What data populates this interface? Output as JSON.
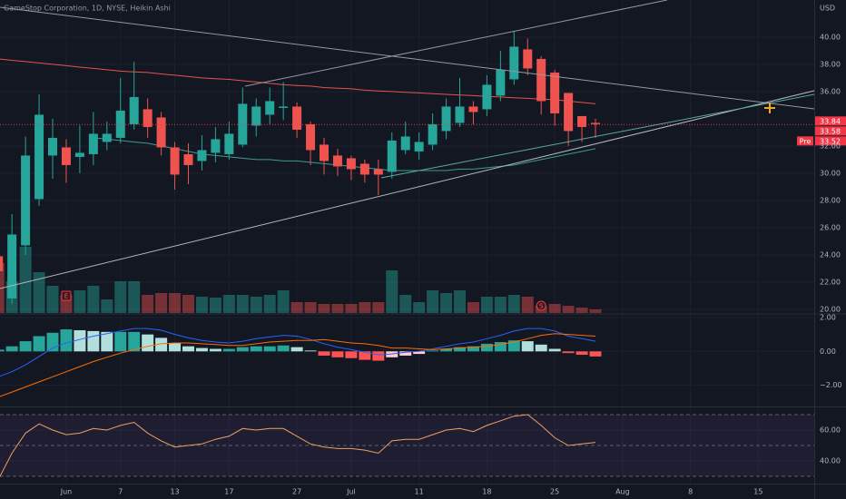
{
  "chart_data": [
    {
      "type": "candlestick",
      "title": "GameStop Corporation, 1D, NYSE, Heikin Ashi",
      "currency": "USD",
      "x": [
        0,
        1,
        2,
        3,
        4,
        5,
        6,
        7,
        8,
        9,
        10,
        11,
        12,
        13,
        14,
        15,
        16,
        17,
        18,
        19,
        20,
        21,
        22,
        23,
        24,
        25,
        26,
        27,
        28,
        29,
        30,
        31,
        32,
        33,
        34,
        35,
        36,
        37,
        38,
        39,
        40,
        41,
        42,
        43,
        44
      ],
      "open": [
        23.9,
        20.8,
        24.7,
        28.1,
        31.3,
        31.9,
        31.2,
        31.4,
        32.3,
        32.6,
        33.6,
        34.7,
        34.1,
        31.9,
        31.4,
        30.9,
        31.5,
        31.4,
        32.1,
        33.5,
        34.3,
        34.8,
        34.9,
        33.6,
        32.1,
        31.3,
        31.1,
        30.7,
        30.3,
        30.1,
        31.7,
        31.6,
        32.1,
        33.1,
        33.7,
        34.9,
        34.7,
        35.7,
        36.9,
        39.1,
        38.4,
        37.4,
        35.9,
        34.2,
        33.7
      ],
      "high": [
        24.2,
        27.0,
        32.7,
        35.8,
        34.0,
        32.5,
        33.5,
        34.5,
        33.8,
        37.0,
        38.2,
        35.5,
        34.5,
        32.3,
        32.2,
        32.8,
        33.4,
        33.8,
        36.3,
        35.5,
        36.3,
        36.7,
        35.2,
        33.8,
        32.6,
        31.8,
        31.3,
        31.0,
        31.0,
        33.0,
        33.8,
        33.0,
        34.4,
        35.5,
        37.0,
        35.3,
        37.2,
        39.0,
        40.4,
        39.9,
        38.6,
        37.6,
        35.9,
        34.2,
        34.0
      ],
      "low": [
        22.5,
        20.4,
        24.0,
        27.6,
        29.6,
        29.3,
        30.0,
        30.6,
        31.7,
        32.2,
        33.2,
        32.6,
        31.3,
        28.8,
        29.2,
        30.2,
        30.8,
        31.0,
        31.9,
        32.7,
        33.6,
        33.9,
        32.6,
        30.6,
        29.9,
        29.8,
        29.5,
        29.3,
        28.4,
        29.6,
        31.4,
        31.0,
        31.7,
        32.5,
        33.4,
        33.6,
        34.2,
        35.3,
        36.5,
        37.2,
        34.3,
        33.5,
        32.0,
        32.3,
        32.6
      ],
      "close": [
        22.8,
        25.5,
        31.3,
        34.3,
        32.6,
        30.6,
        31.5,
        32.9,
        32.9,
        34.6,
        35.6,
        33.4,
        31.9,
        29.9,
        30.6,
        31.7,
        32.5,
        32.9,
        35.1,
        34.9,
        35.3,
        34.9,
        33.2,
        31.7,
        30.9,
        30.5,
        30.3,
        29.9,
        29.9,
        32.4,
        32.7,
        32.3,
        33.6,
        34.9,
        34.9,
        34.5,
        36.5,
        37.6,
        39.3,
        37.7,
        35.3,
        34.4,
        33.1,
        33.4,
        33.6
      ],
      "volume": [
        5.5,
        3.5,
        7.3,
        4.5,
        3.0,
        2.0,
        2.5,
        3.0,
        1.5,
        3.5,
        3.5,
        2.0,
        2.2,
        2.2,
        2.0,
        1.8,
        1.7,
        2.0,
        2.0,
        1.8,
        2.0,
        2.5,
        1.2,
        1.2,
        1.0,
        1.0,
        1.0,
        1.2,
        1.2,
        4.7,
        2.0,
        1.2,
        2.5,
        2.2,
        2.5,
        1.2,
        1.8,
        1.8,
        2.0,
        1.8,
        0.8,
        1.0,
        0.8,
        0.6,
        0.4
      ],
      "up_color": "#26a69a",
      "down_color": "#ef5350",
      "overlays": [
        {
          "color": "#e5534b",
          "values": [
            38.4,
            38.3,
            38.2,
            38.1,
            38.0,
            37.9,
            37.8,
            37.7,
            37.6,
            37.5,
            37.45,
            37.4,
            37.3,
            37.2,
            37.1,
            37.0,
            36.95,
            36.9,
            36.8,
            36.7,
            36.6,
            36.5,
            36.45,
            36.4,
            36.3,
            36.25,
            36.2,
            36.1,
            36.05,
            36.0,
            35.95,
            35.9,
            35.85,
            35.8,
            35.75,
            35.7,
            35.65,
            35.6,
            35.55,
            35.5,
            35.45,
            35.4,
            35.3,
            35.2,
            35.1
          ]
        },
        {
          "color": "#3b9c8f",
          "values": [
            null,
            null,
            null,
            null,
            null,
            null,
            null,
            32.6,
            32.5,
            32.4,
            32.3,
            32.2,
            32.0,
            31.8,
            31.6,
            31.4,
            31.3,
            31.2,
            31.1,
            31.0,
            31.0,
            30.9,
            30.9,
            30.8,
            30.7,
            30.6,
            30.5,
            30.4,
            30.3,
            30.2,
            30.2,
            30.2,
            30.2,
            30.2,
            30.3,
            30.3,
            30.4,
            30.5,
            30.6,
            30.8,
            31.0,
            31.2,
            31.4,
            31.6,
            31.8
          ]
        }
      ],
      "price_tags": [
        {
          "value": 33.84
        },
        {
          "value": 33.58
        },
        {
          "name": "Pre",
          "value": 33.52
        }
      ],
      "events": [
        {
          "label": "E",
          "x": 5
        },
        {
          "label": "S",
          "x": 40
        }
      ],
      "xlim": [
        0.12,
        60.12
      ],
      "ylim": [
        19.73,
        42.73
      ],
      "yticks": [
        {
          "value": 20,
          "label": "20.00"
        },
        {
          "value": 22,
          "label": "22.00"
        },
        {
          "value": 24,
          "label": "24.00"
        },
        {
          "value": 26,
          "label": "26.00"
        },
        {
          "value": 28,
          "label": "28.00"
        },
        {
          "value": 30,
          "label": "30.00"
        },
        {
          "value": 32,
          "label": "32.00"
        },
        {
          "value": 36,
          "label": "36.00"
        },
        {
          "value": 38,
          "label": "38.00"
        },
        {
          "value": 40,
          "label": "40.00"
        }
      ],
      "grid": true
    },
    {
      "type": "macd",
      "x": [
        0,
        1,
        2,
        3,
        4,
        5,
        6,
        7,
        8,
        9,
        10,
        11,
        12,
        13,
        14,
        15,
        16,
        17,
        18,
        19,
        20,
        21,
        22,
        23,
        24,
        25,
        26,
        27,
        28,
        29,
        30,
        31,
        32,
        33,
        34,
        35,
        36,
        37,
        38,
        39,
        40,
        41,
        42,
        43,
        44
      ],
      "histogram": [
        0.1,
        0.3,
        0.6,
        0.9,
        1.1,
        1.3,
        1.25,
        1.2,
        1.15,
        1.15,
        1.15,
        1.0,
        0.8,
        0.5,
        0.3,
        0.2,
        0.15,
        0.15,
        0.25,
        0.3,
        0.3,
        0.35,
        0.25,
        0.05,
        -0.25,
        -0.35,
        -0.4,
        -0.5,
        -0.55,
        -0.35,
        -0.25,
        -0.15,
        0.05,
        0.15,
        0.25,
        0.3,
        0.45,
        0.55,
        0.65,
        0.6,
        0.4,
        0.15,
        -0.1,
        -0.2,
        -0.3
      ],
      "macd": [
        -1.5,
        -1.2,
        -0.8,
        -0.3,
        0.2,
        0.5,
        0.7,
        0.9,
        1.05,
        1.2,
        1.35,
        1.35,
        1.25,
        1.0,
        0.8,
        0.65,
        0.55,
        0.5,
        0.6,
        0.75,
        0.85,
        0.95,
        0.9,
        0.7,
        0.45,
        0.25,
        0.1,
        -0.05,
        -0.2,
        -0.15,
        -0.05,
        0.0,
        0.15,
        0.3,
        0.45,
        0.55,
        0.75,
        0.95,
        1.2,
        1.35,
        1.35,
        1.2,
        0.9,
        0.75,
        0.6
      ],
      "signal": [
        -2.7,
        -2.4,
        -2.1,
        -1.8,
        -1.5,
        -1.2,
        -0.9,
        -0.6,
        -0.35,
        -0.1,
        0.1,
        0.3,
        0.45,
        0.5,
        0.5,
        0.45,
        0.4,
        0.35,
        0.35,
        0.45,
        0.55,
        0.6,
        0.65,
        0.65,
        0.7,
        0.6,
        0.5,
        0.45,
        0.35,
        0.2,
        0.2,
        0.15,
        0.1,
        0.15,
        0.2,
        0.25,
        0.3,
        0.4,
        0.55,
        0.75,
        0.95,
        1.05,
        1.0,
        0.95,
        0.9
      ],
      "histogram_colors": {
        "up_rising": "#26a69a",
        "up_falling": "#b2dfdb",
        "down_falling": "#ff5252",
        "down_rising": "#ffcdd2"
      },
      "macd_color": "#2962ff",
      "signal_color": "#ff6d00",
      "xlim": [
        0.12,
        60.12
      ],
      "ylim": [
        -3.2,
        2.16
      ],
      "yticks": [
        {
          "value": 2,
          "label": "2.00"
        },
        {
          "value": 0,
          "label": "0.00"
        },
        {
          "value": -2,
          "label": "−2.00"
        }
      ],
      "grid": true
    },
    {
      "type": "rsi",
      "x": [
        0,
        1,
        2,
        3,
        4,
        5,
        6,
        7,
        8,
        9,
        10,
        11,
        12,
        13,
        14,
        15,
        16,
        17,
        18,
        19,
        20,
        21,
        22,
        23,
        24,
        25,
        26,
        27,
        28,
        29,
        30,
        31,
        32,
        33,
        34,
        35,
        36,
        37,
        38,
        39,
        40,
        41,
        42,
        43,
        44
      ],
      "values": [
        28,
        45,
        58,
        64,
        60,
        57,
        58,
        61,
        60,
        63,
        65,
        58,
        53,
        49,
        50,
        51,
        54,
        56,
        61,
        60,
        61,
        61,
        56,
        51,
        49,
        48,
        48,
        47,
        45,
        53,
        54,
        54,
        57,
        60,
        61,
        59,
        63,
        66,
        69,
        70,
        63,
        55,
        50,
        51,
        52
      ],
      "color": "#f0a060",
      "levels": [
        70,
        50,
        30
      ],
      "xlim": [
        0.12,
        60.12
      ],
      "ylim": [
        25.3,
        74.1
      ],
      "yticks": [
        {
          "value": 60,
          "label": "60.00"
        },
        {
          "value": 40,
          "label": "40.00"
        }
      ],
      "xticks": [
        {
          "value": 5,
          "label": "Jun"
        },
        {
          "value": 9,
          "label": "7"
        },
        {
          "value": 13,
          "label": "13"
        },
        {
          "value": 17,
          "label": "17"
        },
        {
          "value": 22,
          "label": "27"
        },
        {
          "value": 26,
          "label": "Jul"
        },
        {
          "value": 31,
          "label": "11"
        },
        {
          "value": 36,
          "label": "18"
        },
        {
          "value": 41,
          "label": "25"
        },
        {
          "value": 46,
          "label": "Aug"
        },
        {
          "value": 51,
          "label": "8"
        },
        {
          "value": 56,
          "label": "15"
        }
      ],
      "grid": true
    }
  ]
}
